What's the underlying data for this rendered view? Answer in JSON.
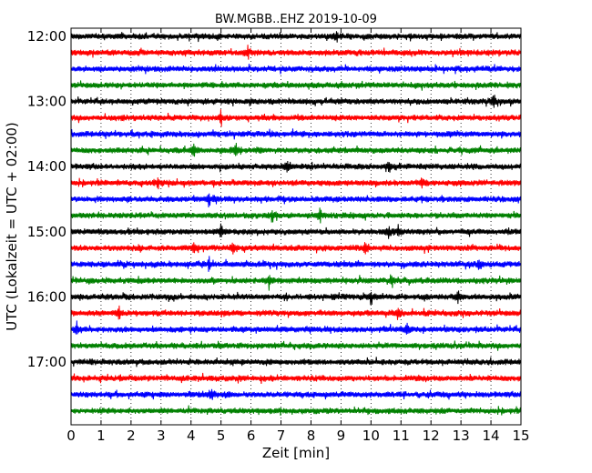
{
  "chart_data": {
    "type": "line",
    "title": "BW.MGBB..EHZ 2019-10-09",
    "xlabel": "Zeit  [min]",
    "ylabel": "UTC (Lokalzeit = UTC + 02:00)",
    "xlim": [
      0,
      15
    ],
    "x_ticks": [
      0,
      1,
      2,
      3,
      4,
      5,
      6,
      7,
      8,
      9,
      10,
      11,
      12,
      13,
      14,
      15
    ],
    "x_tick_labels": [
      "0",
      "1",
      "2",
      "3",
      "4",
      "5",
      "6",
      "7",
      "8",
      "9",
      "10",
      "11",
      "12",
      "13",
      "14",
      "15"
    ],
    "y_tick_labels": [
      "12:00",
      "13:00",
      "14:00",
      "15:00",
      "16:00",
      "17:00"
    ],
    "vertical_grid": "dotted",
    "colors": [
      "#000000",
      "#ff0000",
      "#0000ff",
      "#008000"
    ],
    "traces": [
      {
        "start": "12:00",
        "color": "#000000",
        "spikes": [
          8.85
        ]
      },
      {
        "start": "12:15",
        "color": "#ff0000",
        "spikes": [
          5.9
        ]
      },
      {
        "start": "12:30",
        "color": "#0000ff",
        "spikes": []
      },
      {
        "start": "12:45",
        "color": "#008000",
        "spikes": []
      },
      {
        "start": "13:00",
        "color": "#000000",
        "spikes": [
          14.1
        ]
      },
      {
        "start": "13:15",
        "color": "#ff0000",
        "spikes": [
          5.0
        ]
      },
      {
        "start": "13:30",
        "color": "#0000ff",
        "spikes": []
      },
      {
        "start": "13:45",
        "color": "#008000",
        "spikes": [
          4.1,
          5.5
        ]
      },
      {
        "start": "14:00",
        "color": "#000000",
        "spikes": [
          7.2,
          10.6
        ]
      },
      {
        "start": "14:15",
        "color": "#ff0000",
        "spikes": [
          2.9,
          11.7
        ]
      },
      {
        "start": "14:30",
        "color": "#0000ff",
        "spikes": [
          4.6
        ]
      },
      {
        "start": "14:45",
        "color": "#008000",
        "spikes": [
          6.7,
          8.3
        ]
      },
      {
        "start": "15:00",
        "color": "#000000",
        "spikes": [
          5.0,
          10.6,
          10.9
        ]
      },
      {
        "start": "15:15",
        "color": "#ff0000",
        "spikes": [
          4.1,
          5.4,
          9.8
        ]
      },
      {
        "start": "15:30",
        "color": "#0000ff",
        "spikes": [
          4.6,
          13.6
        ]
      },
      {
        "start": "15:45",
        "color": "#008000",
        "spikes": [
          6.6,
          10.7
        ]
      },
      {
        "start": "16:00",
        "color": "#000000",
        "spikes": [
          10.0,
          12.9
        ]
      },
      {
        "start": "16:15",
        "color": "#ff0000",
        "spikes": [
          1.6,
          10.9
        ]
      },
      {
        "start": "16:30",
        "color": "#0000ff",
        "spikes": [
          0.2,
          11.2
        ]
      },
      {
        "start": "16:45",
        "color": "#008000",
        "spikes": []
      },
      {
        "start": "17:00",
        "color": "#000000",
        "spikes": []
      },
      {
        "start": "17:15",
        "color": "#ff0000",
        "spikes": []
      },
      {
        "start": "17:30",
        "color": "#0000ff",
        "spikes": [
          4.7
        ]
      },
      {
        "start": "17:45",
        "color": "#008000",
        "spikes": []
      }
    ]
  }
}
